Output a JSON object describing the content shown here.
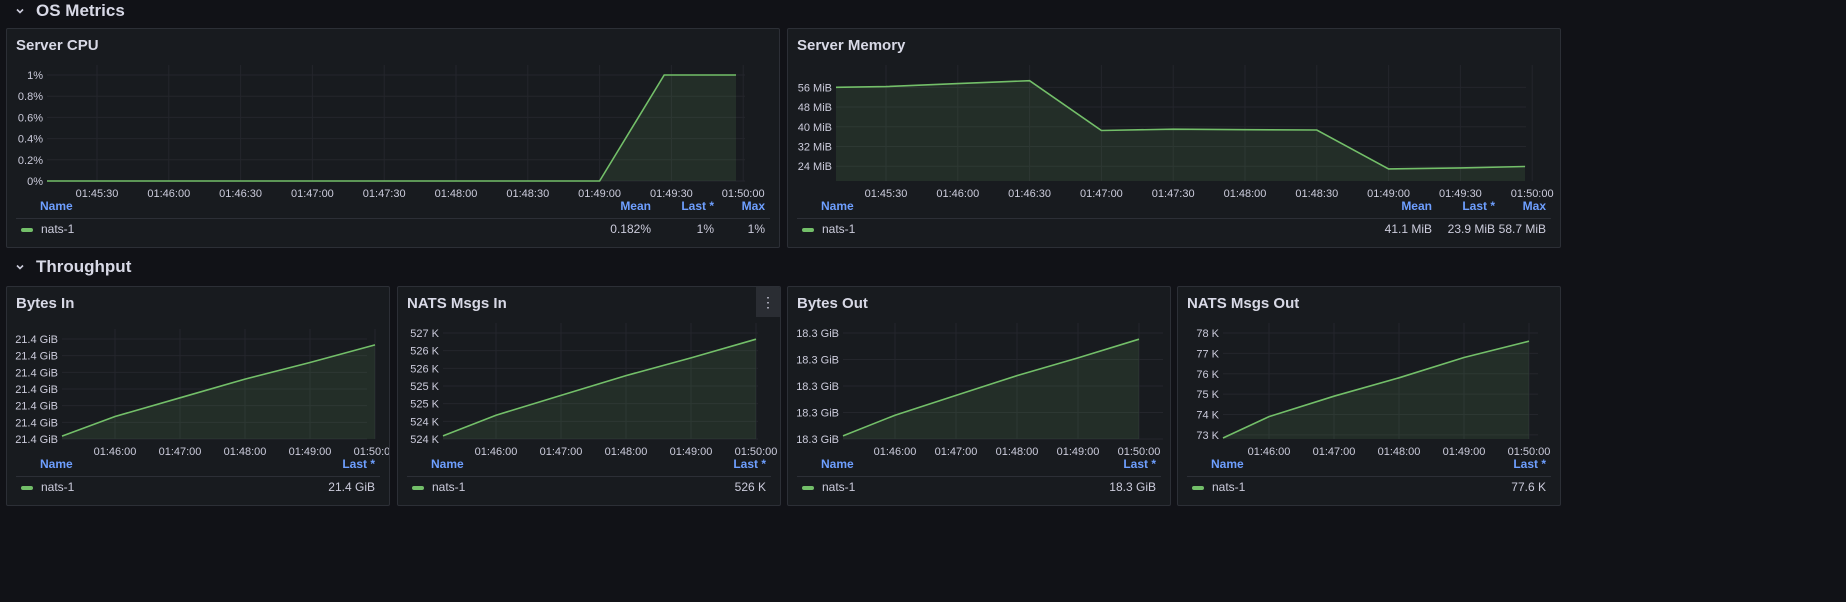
{
  "rows": [
    {
      "title": "OS Metrics"
    },
    {
      "title": "Throughput"
    }
  ],
  "colors": {
    "series": "#73bf69",
    "legend_header": "#6e9fff",
    "grid": "#2a2d33"
  },
  "panels": [
    {
      "id": "server-cpu",
      "title": "Server CPU",
      "legend": {
        "headers": [
          "Name",
          "Mean",
          "Last *",
          "Max"
        ],
        "series_name": "nats-1",
        "values": [
          "0.182%",
          "1%",
          "1%"
        ]
      },
      "chart_data": {
        "type": "area",
        "x_ticks": [
          "01:45:30",
          "01:46:00",
          "01:46:30",
          "01:47:00",
          "01:47:30",
          "01:48:00",
          "01:48:30",
          "01:49:00",
          "01:49:30",
          "01:50:00"
        ],
        "y_ticks": [
          "0%",
          "0.2%",
          "0.4%",
          "0.6%",
          "0.8%",
          "1%"
        ],
        "x_range": [
          0,
          9.65
        ],
        "y_range": [
          0,
          1
        ],
        "x": [
          -0.7,
          6.2,
          7.0,
          7.9,
          8.9
        ],
        "y": [
          0,
          0,
          0,
          1,
          1
        ]
      }
    },
    {
      "id": "server-memory",
      "title": "Server Memory",
      "legend": {
        "headers": [
          "Name",
          "Mean",
          "Last *",
          "Max"
        ],
        "series_name": "nats-1",
        "values": [
          "41.1 MiB",
          "23.9 MiB",
          "58.7 MiB"
        ]
      },
      "chart_data": {
        "type": "area",
        "x_ticks": [
          "01:45:30",
          "01:46:00",
          "01:46:30",
          "01:47:00",
          "01:47:30",
          "01:48:00",
          "01:48:30",
          "01:49:00",
          "01:49:30",
          "01:50:00"
        ],
        "y_ticks": [
          "24 MiB",
          "32 MiB",
          "40 MiB",
          "48 MiB",
          "56 MiB"
        ],
        "y_tick_values": [
          24,
          32,
          40,
          48,
          56
        ],
        "x_range": [
          0,
          9.65
        ],
        "y_range": [
          18,
          61
        ],
        "x": [
          -0.7,
          0.0,
          1.0,
          2.0,
          3.0,
          4.0,
          5.0,
          6.0,
          7.0,
          8.0,
          8.9
        ],
        "y": [
          56.0,
          56.3,
          57.5,
          58.7,
          38.5,
          39.0,
          38.8,
          38.7,
          22.9,
          23.3,
          23.9
        ]
      }
    },
    {
      "id": "bytes-in",
      "title": "Bytes In",
      "legend": {
        "headers": [
          "Name",
          "Last *"
        ],
        "series_name": "nats-1",
        "values": [
          "21.4 GiB"
        ]
      },
      "chart_data": {
        "type": "area",
        "x_ticks": [
          "01:46:00",
          "01:47:00",
          "01:48:00",
          "01:49:00",
          "01:50:00"
        ],
        "y_ticks": [
          "21.4 GiB",
          "21.4 GiB",
          "21.4 GiB",
          "21.4 GiB",
          "21.4 GiB",
          "21.4 GiB",
          "21.4 GiB"
        ],
        "x_range": [
          -0.8,
          4.4
        ],
        "y_range": [
          -0.2,
          6.6
        ],
        "x": [
          -1.0,
          0.0,
          1.0,
          2.0,
          3.0,
          4.0
        ],
        "y": [
          0,
          1.33,
          2.6,
          3.87,
          5.0,
          6.2
        ]
      }
    },
    {
      "id": "nats-msgs-in",
      "title": "NATS Msgs In",
      "legend": {
        "headers": [
          "Name",
          "Last *"
        ],
        "series_name": "nats-1",
        "values": [
          "526 K"
        ]
      },
      "chart_data": {
        "type": "area",
        "x_ticks": [
          "01:46:00",
          "01:47:00",
          "01:48:00",
          "01:49:00",
          "01:50:00"
        ],
        "y_ticks": [
          "524 K",
          "524 K",
          "525 K",
          "525 K",
          "526 K",
          "526 K",
          "527 K"
        ],
        "x_range": [
          -0.8,
          4.4
        ],
        "y_range": [
          -0.2,
          6.6
        ],
        "x": [
          -1.0,
          0.0,
          1.0,
          2.0,
          3.0,
          4.0
        ],
        "y": [
          0,
          1.33,
          2.6,
          3.87,
          5.0,
          6.2
        ]
      }
    },
    {
      "id": "bytes-out",
      "title": "Bytes Out",
      "legend": {
        "headers": [
          "Name",
          "Last *"
        ],
        "series_name": "nats-1",
        "values": [
          "18.3 GiB"
        ]
      },
      "chart_data": {
        "type": "area",
        "x_ticks": [
          "01:46:00",
          "01:47:00",
          "01:48:00",
          "01:49:00",
          "01:50:00"
        ],
        "y_ticks": [
          "18.3 GiB",
          "18.3 GiB",
          "18.3 GiB",
          "18.3 GiB",
          "18.3 GiB"
        ],
        "x_range": [
          -0.8,
          4.4
        ],
        "y_range": [
          -0.2,
          6.6
        ],
        "x": [
          -1.0,
          0.0,
          1.0,
          2.0,
          3.0,
          4.0
        ],
        "y": [
          0,
          1.33,
          2.6,
          3.87,
          5.0,
          6.2
        ]
      }
    },
    {
      "id": "nats-msgs-out",
      "title": "NATS Msgs Out",
      "legend": {
        "headers": [
          "Name",
          "Last *"
        ],
        "series_name": "nats-1",
        "values": [
          "77.6 K"
        ]
      },
      "chart_data": {
        "type": "area",
        "x_ticks": [
          "01:46:00",
          "01:47:00",
          "01:48:00",
          "01:49:00",
          "01:50:00"
        ],
        "y_ticks": [
          "73 K",
          "74 K",
          "75 K",
          "76 K",
          "77 K",
          "78 K"
        ],
        "y_tick_values": [
          73,
          74,
          75,
          76,
          77,
          78
        ],
        "x_range": [
          -0.8,
          4.4
        ],
        "y_range": [
          72.8,
          78.0
        ],
        "x": [
          -1.0,
          0.0,
          1.0,
          2.0,
          3.0,
          4.0
        ],
        "y": [
          72.85,
          73.9,
          74.9,
          75.8,
          76.8,
          77.6
        ]
      }
    }
  ]
}
